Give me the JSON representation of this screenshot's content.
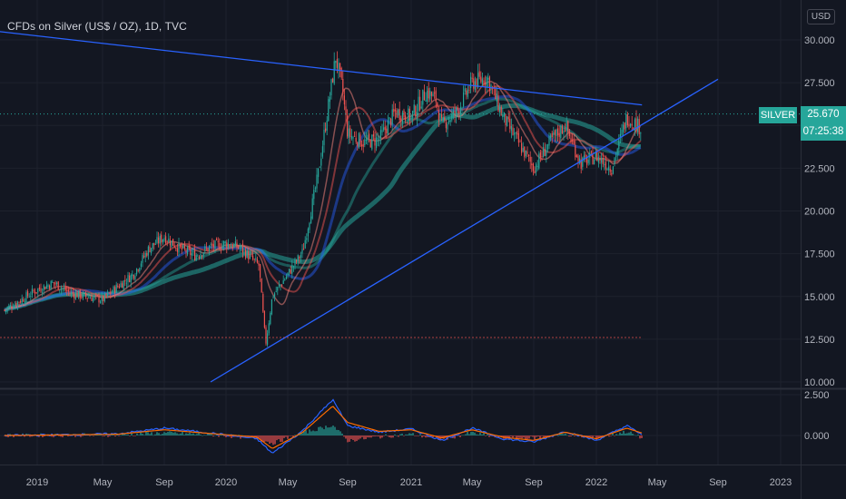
{
  "header": {
    "title": "CFDs on Silver (US$ / OZ), 1D, TVC",
    "currency": "USD"
  },
  "price_tag": {
    "symbol": "SILVER",
    "price": "25.670",
    "countdown": "07:25:38"
  },
  "colors": {
    "background": "#131722",
    "grid": "#1e222d",
    "trendline": "#2962ff",
    "up": "#26a69a",
    "down": "#ef5350",
    "macd_line": "#2962ff",
    "signal_line": "#ff6d00"
  },
  "chart_data": [
    {
      "type": "candlestick",
      "title": "CFDs on Silver (US$ / OZ), 1D, TVC",
      "x_tick_labels": [
        "2019",
        "May",
        "Sep",
        "2020",
        "May",
        "Sep",
        "2021",
        "May",
        "Sep",
        "2022",
        "May",
        "Sep",
        "2023"
      ],
      "y_tick_labels": [
        "10.000",
        "12.500",
        "15.000",
        "17.500",
        "20.000",
        "22.500",
        "25.000",
        "27.500",
        "30.000"
      ],
      "ylim": [
        10.0,
        31.0
      ],
      "grid": true,
      "x": [
        "2018-11",
        "2019-01",
        "2019-02",
        "2019-03",
        "2019-04",
        "2019-05",
        "2019-06",
        "2019-07",
        "2019-08",
        "2019-09",
        "2019-10",
        "2019-11",
        "2019-12",
        "2020-01",
        "2020-02",
        "2020-03-05",
        "2020-03-18",
        "2020-04",
        "2020-05",
        "2020-06",
        "2020-07",
        "2020-08-07",
        "2020-08-20",
        "2020-09",
        "2020-10",
        "2020-11",
        "2020-12",
        "2021-01",
        "2021-02-01",
        "2021-02-20",
        "2021-03",
        "2021-04",
        "2021-05",
        "2021-06",
        "2021-07",
        "2021-08",
        "2021-09",
        "2021-10",
        "2021-11",
        "2021-12",
        "2022-01",
        "2022-02",
        "2022-03",
        "2022-04"
      ],
      "close": [
        14.2,
        15.4,
        15.8,
        15.2,
        15.0,
        14.8,
        15.6,
        16.3,
        17.8,
        18.5,
        17.8,
        17.4,
        17.9,
        18.1,
        17.8,
        16.8,
        12.2,
        15.0,
        16.3,
        17.6,
        22.0,
        29.0,
        27.2,
        24.5,
        24.0,
        24.2,
        25.8,
        25.5,
        27.0,
        26.5,
        25.0,
        25.8,
        27.5,
        27.8,
        25.5,
        24.0,
        22.5,
        24.0,
        25.0,
        22.8,
        23.2,
        22.5,
        25.5,
        24.8
      ],
      "volume": [],
      "series": [
        {
          "name": "",
          "type": "trendline",
          "points": [
            [
              "2018-06",
              31.0
            ],
            [
              "2022-04",
              26.2
            ]
          ]
        },
        {
          "name": "",
          "type": "trendline",
          "points": [
            [
              "2019-12",
              10.0
            ],
            [
              "2022-09",
              27.7
            ]
          ]
        },
        {
          "name": "",
          "type": "horizontal_line",
          "value": 12.6
        }
      ]
    },
    {
      "type": "line",
      "title": "",
      "y_tick_labels": [
        "0.000",
        "2.500"
      ],
      "ylim": [
        -1.3,
        2.6
      ],
      "x": [
        "2018-11",
        "2019-03",
        "2019-06",
        "2019-09",
        "2019-12",
        "2020-03",
        "2020-04",
        "2020-06",
        "2020-08",
        "2020-09",
        "2020-11",
        "2021-01",
        "2021-03",
        "2021-05",
        "2021-07",
        "2021-09",
        "2021-11",
        "2022-01",
        "2022-03",
        "2022-04"
      ],
      "series": [
        {
          "name": "",
          "values": [
            0.0,
            0.05,
            0.1,
            0.45,
            0.15,
            -0.2,
            -1.1,
            0.3,
            2.2,
            0.6,
            0.2,
            0.4,
            -0.3,
            0.45,
            -0.2,
            -0.4,
            0.25,
            -0.3,
            0.6,
            0.05
          ]
        },
        {
          "name": "",
          "values": [
            0.0,
            0.04,
            0.08,
            0.35,
            0.12,
            -0.1,
            -0.8,
            0.2,
            1.8,
            0.8,
            0.25,
            0.35,
            -0.15,
            0.35,
            -0.1,
            -0.3,
            0.2,
            -0.2,
            0.45,
            0.15
          ]
        }
      ]
    }
  ]
}
